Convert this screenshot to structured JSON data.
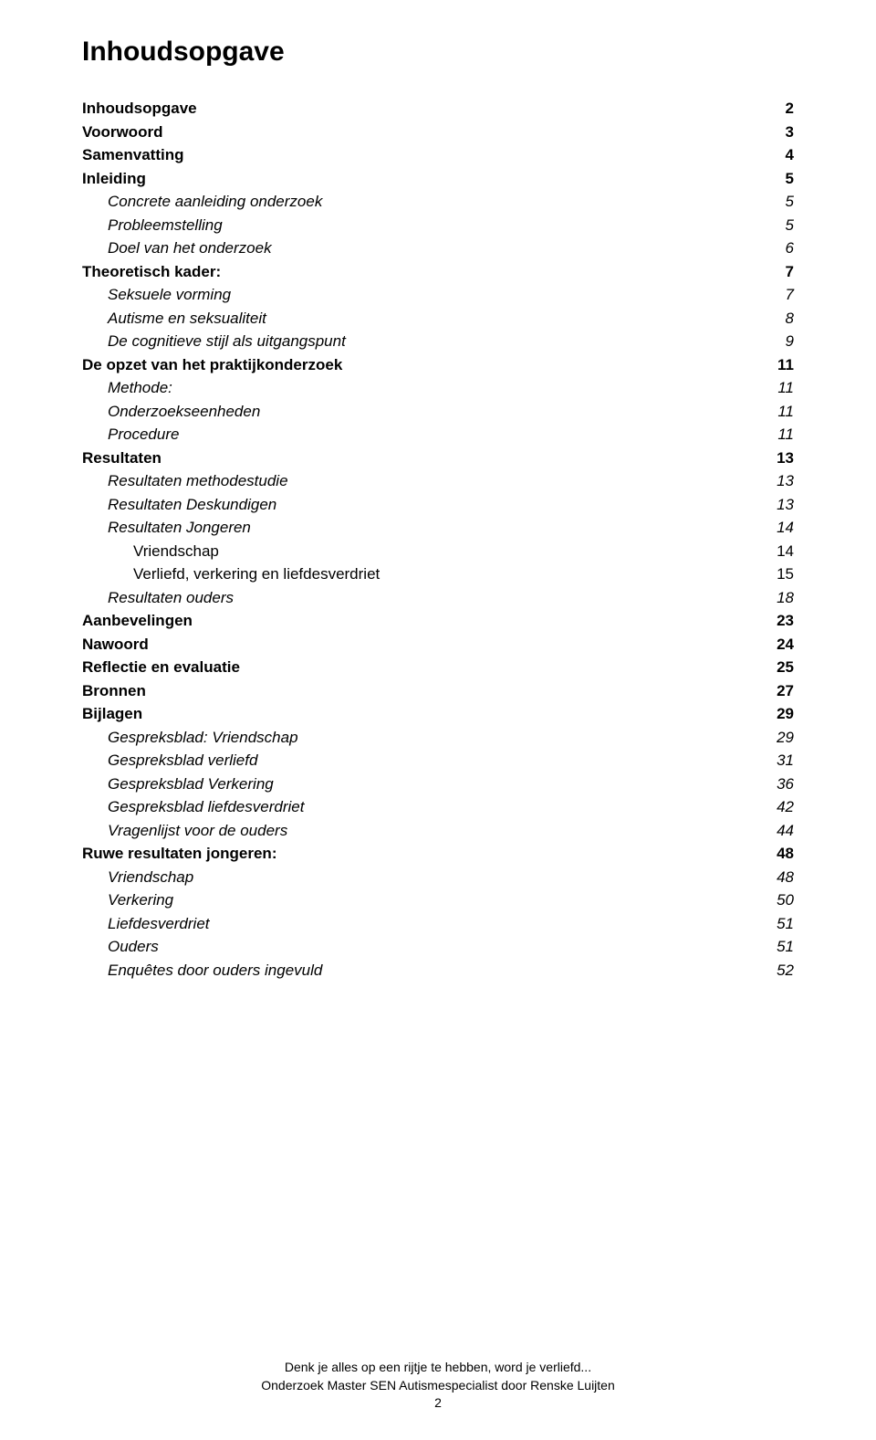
{
  "title": "Inhoudsopgave",
  "toc": [
    {
      "label": "Inhoudsopgave",
      "page": "2",
      "bold": true,
      "italic": false,
      "indent": 0
    },
    {
      "label": "Voorwoord",
      "page": "3",
      "bold": true,
      "italic": false,
      "indent": 0
    },
    {
      "label": "Samenvatting",
      "page": "4",
      "bold": true,
      "italic": false,
      "indent": 0
    },
    {
      "label": "Inleiding",
      "page": "5",
      "bold": true,
      "italic": false,
      "indent": 0
    },
    {
      "label": "Concrete aanleiding onderzoek",
      "page": "5",
      "bold": false,
      "italic": true,
      "indent": 1
    },
    {
      "label": "Probleemstelling",
      "page": "5",
      "bold": false,
      "italic": true,
      "indent": 1
    },
    {
      "label": "Doel van het onderzoek",
      "page": "6",
      "bold": false,
      "italic": true,
      "indent": 1
    },
    {
      "label": "Theoretisch kader:",
      "page": "7",
      "bold": true,
      "italic": false,
      "indent": 0
    },
    {
      "label": "Seksuele vorming",
      "page": "7",
      "bold": false,
      "italic": true,
      "indent": 1
    },
    {
      "label": "Autisme en seksualiteit",
      "page": "8",
      "bold": false,
      "italic": true,
      "indent": 1
    },
    {
      "label": "De cognitieve stijl als uitgangspunt",
      "page": "9",
      "bold": false,
      "italic": true,
      "indent": 1
    },
    {
      "label": "De opzet van het praktijkonderzoek",
      "page": "11",
      "bold": true,
      "italic": false,
      "indent": 0
    },
    {
      "label": "Methode:",
      "page": "11",
      "bold": false,
      "italic": true,
      "indent": 1
    },
    {
      "label": "Onderzoekseenheden",
      "page": "11",
      "bold": false,
      "italic": true,
      "indent": 1
    },
    {
      "label": "Procedure",
      "page": "11",
      "bold": false,
      "italic": true,
      "indent": 1
    },
    {
      "label": "Resultaten",
      "page": "13",
      "bold": true,
      "italic": false,
      "indent": 0
    },
    {
      "label": "Resultaten methodestudie",
      "page": "13",
      "bold": false,
      "italic": true,
      "indent": 1
    },
    {
      "label": "Resultaten Deskundigen",
      "page": "13",
      "bold": false,
      "italic": true,
      "indent": 1
    },
    {
      "label": "Resultaten Jongeren",
      "page": "14",
      "bold": false,
      "italic": true,
      "indent": 1
    },
    {
      "label": "Vriendschap",
      "page": "14",
      "bold": false,
      "italic": false,
      "indent": 2
    },
    {
      "label": "Verliefd, verkering en liefdesverdriet",
      "page": "15",
      "bold": false,
      "italic": false,
      "indent": 2
    },
    {
      "label": "Resultaten ouders",
      "page": "18",
      "bold": false,
      "italic": true,
      "indent": 1
    },
    {
      "label": "Aanbevelingen",
      "page": "23",
      "bold": true,
      "italic": false,
      "indent": 0
    },
    {
      "label": "Nawoord",
      "page": "24",
      "bold": true,
      "italic": false,
      "indent": 0
    },
    {
      "label": "Reflectie en evaluatie",
      "page": "25",
      "bold": true,
      "italic": false,
      "indent": 0
    },
    {
      "label": "Bronnen",
      "page": "27",
      "bold": true,
      "italic": false,
      "indent": 0
    },
    {
      "label": "Bijlagen",
      "page": "29",
      "bold": true,
      "italic": false,
      "indent": 0
    },
    {
      "label": "Gespreksblad: Vriendschap",
      "page": "29",
      "bold": false,
      "italic": true,
      "indent": 1
    },
    {
      "label": "Gespreksblad verliefd",
      "page": "31",
      "bold": false,
      "italic": true,
      "indent": 1
    },
    {
      "label": "Gespreksblad Verkering",
      "page": "36",
      "bold": false,
      "italic": true,
      "indent": 1
    },
    {
      "label": "Gespreksblad liefdesverdriet",
      "page": "42",
      "bold": false,
      "italic": true,
      "indent": 1
    },
    {
      "label": "Vragenlijst voor de ouders",
      "page": "44",
      "bold": false,
      "italic": true,
      "indent": 1
    },
    {
      "label": "Ruwe resultaten jongeren:",
      "page": "48",
      "bold": true,
      "italic": false,
      "indent": 0
    },
    {
      "label": "Vriendschap",
      "page": "48",
      "bold": false,
      "italic": true,
      "indent": 1
    },
    {
      "label": "Verkering",
      "page": "50",
      "bold": false,
      "italic": true,
      "indent": 1
    },
    {
      "label": "Liefdesverdriet",
      "page": "51",
      "bold": false,
      "italic": true,
      "indent": 1
    },
    {
      "label": "Ouders",
      "page": "51",
      "bold": false,
      "italic": true,
      "indent": 1
    },
    {
      "label": "Enquêtes door ouders ingevuld",
      "page": "52",
      "bold": false,
      "italic": true,
      "indent": 1
    }
  ],
  "footer": {
    "line1": "Denk je alles op een rijtje te hebben, word je verliefd...",
    "line2": "Onderzoek Master SEN Autismespecialist door Renske Luijten",
    "pagenum": "2"
  }
}
